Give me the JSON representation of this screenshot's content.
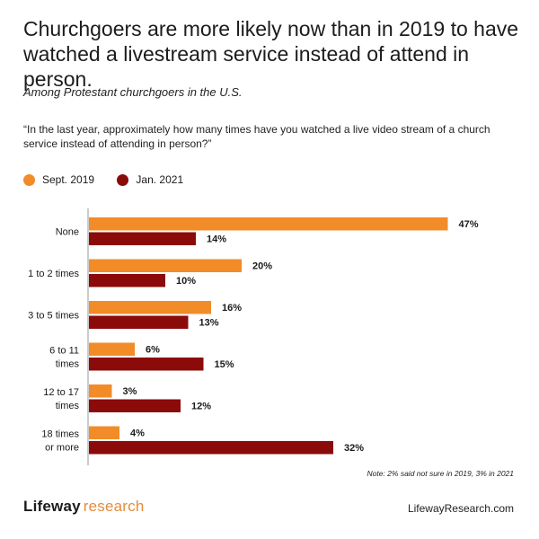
{
  "title": "Churchgoers are more likely now than in 2019 to have watched a livestream service instead of attend in person.",
  "subtitle": "Among Protestant churchgoers in the U.S.",
  "question": "“In the last year, approximately how many times have you watched a live video stream of a church service instead of attending in person?”",
  "note": "Note: 2% said not sure in 2019, 3% in 2021",
  "brand": {
    "bold": "Lifeway",
    "light": "research"
  },
  "website": "LifewayResearch.com",
  "colors": {
    "sept2019": "#F28C28",
    "jan2021": "#8B0A0A"
  },
  "chart_data": {
    "type": "bar",
    "orientation": "horizontal",
    "categories": [
      [
        "None"
      ],
      [
        "1 to 2 times"
      ],
      [
        "3 to 5 times"
      ],
      [
        "6 to 11",
        "times"
      ],
      [
        "12 to 17",
        "times"
      ],
      [
        "18 times",
        "or more"
      ]
    ],
    "series": [
      {
        "name": "Sept. 2019",
        "values": [
          47,
          20,
          16,
          6,
          3,
          4
        ],
        "labels": [
          "47%",
          "20%",
          "16%",
          "6%",
          "3%",
          "4%"
        ]
      },
      {
        "name": "Jan. 2021",
        "values": [
          14,
          10,
          13,
          15,
          12,
          32
        ],
        "labels": [
          "14%",
          "10%",
          "13%",
          "15%",
          "12%",
          "32%"
        ]
      }
    ],
    "xlim": [
      0,
      50
    ],
    "legend": "top-left",
    "grid": false
  }
}
